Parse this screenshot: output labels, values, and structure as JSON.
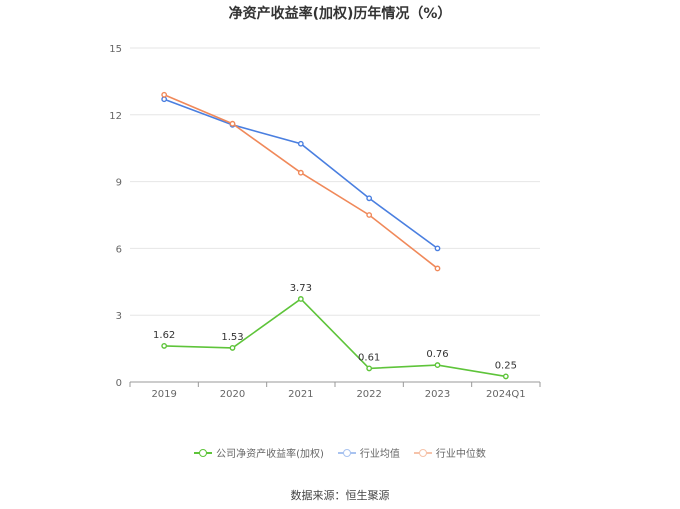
{
  "chart_data": {
    "type": "line",
    "title": "净资产收益率(加权)历年情况（%）",
    "categories": [
      "2019",
      "2020",
      "2021",
      "2022",
      "2023",
      "2024Q1"
    ],
    "y_ticks": [
      "0",
      "3",
      "6",
      "9",
      "12",
      "15"
    ],
    "ylim": [
      0,
      15
    ],
    "grid": true,
    "legend_position": "bottom",
    "series": [
      {
        "name": "公司净资产收益率(加权)",
        "color": "#5ec43a",
        "values": [
          1.62,
          1.53,
          3.73,
          0.61,
          0.76,
          0.25
        ],
        "labels": [
          "1.62",
          "1.53",
          "3.73",
          "0.61",
          "0.76",
          "0.25"
        ]
      },
      {
        "name": "行业均值",
        "color": "#4a7fe0",
        "values": [
          12.7,
          11.55,
          10.7,
          8.25,
          6.0,
          null
        ]
      },
      {
        "name": "行业中位数",
        "color": "#f0895a",
        "values": [
          12.9,
          11.6,
          9.4,
          7.5,
          5.1,
          null
        ]
      }
    ]
  },
  "legend": {
    "company": "公司净资产收益率(加权)",
    "industry_avg": "行业均值",
    "industry_median": "行业中位数"
  },
  "source": "数据来源：恒生聚源"
}
